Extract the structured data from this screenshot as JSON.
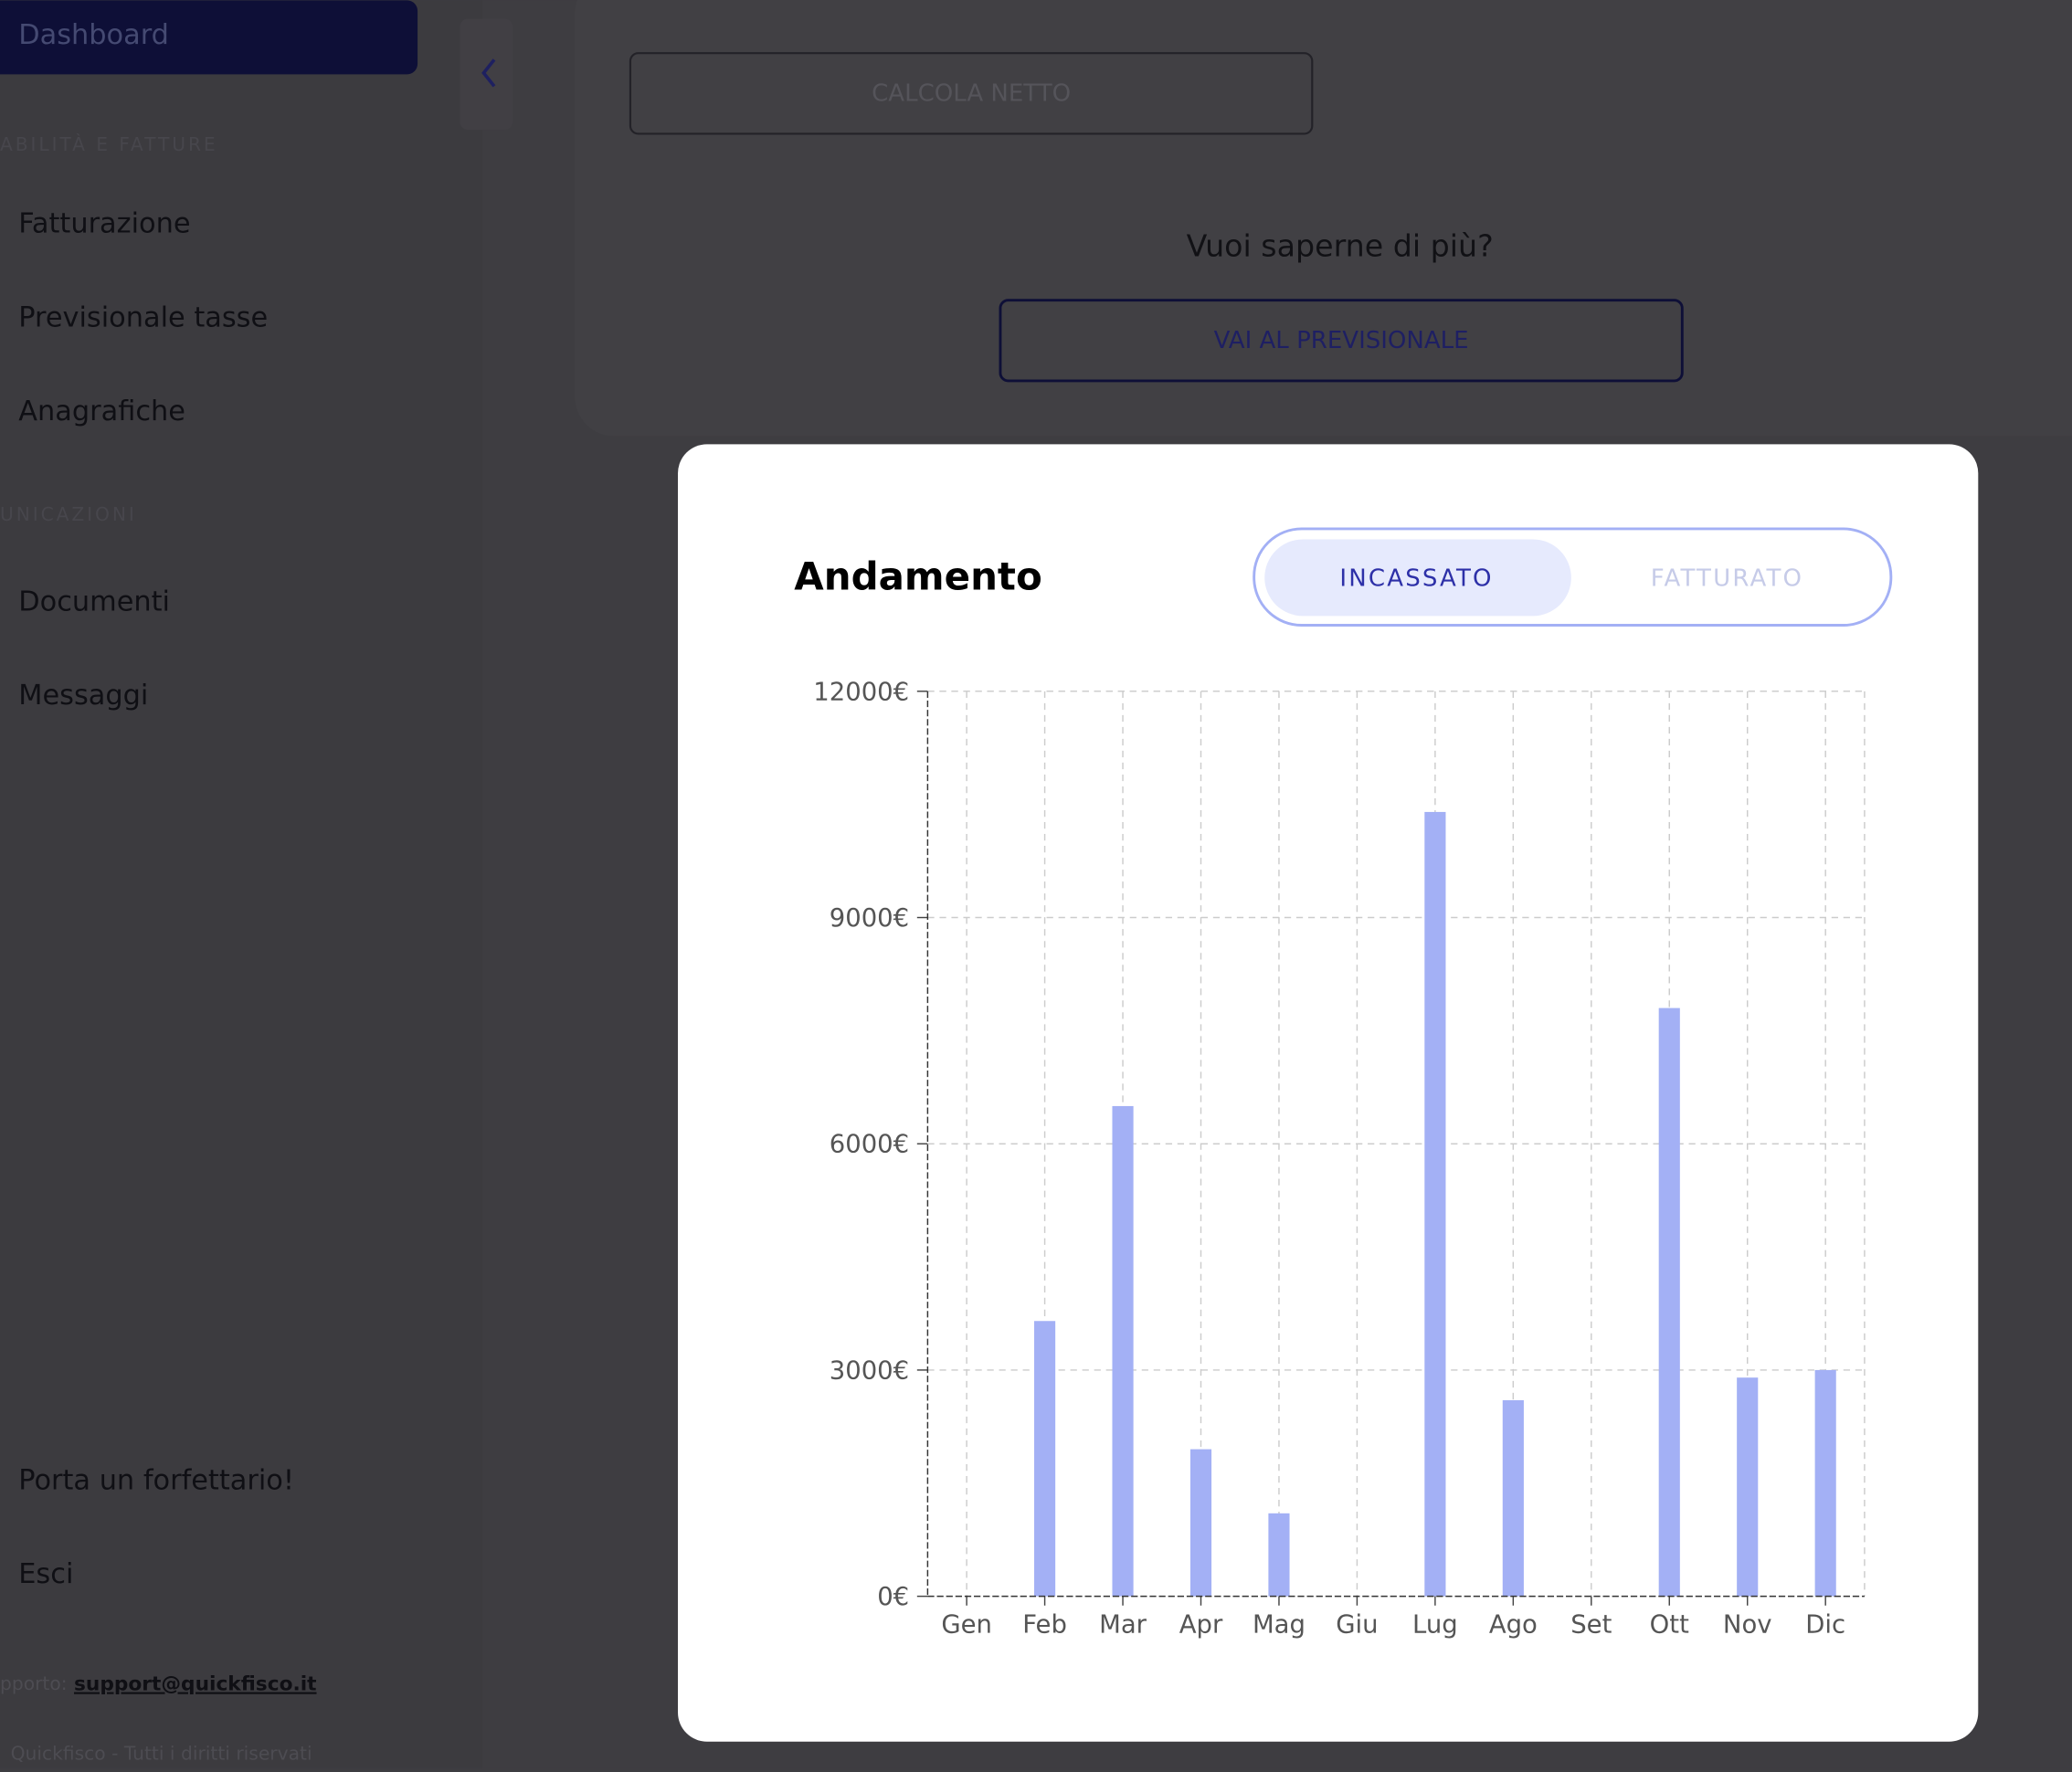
{
  "sidebar": {
    "active": "Dashboard",
    "section1": "ABILITÀ E FATTURE",
    "items1": [
      "Fatturazione",
      "Previsionale tasse",
      "Anagrafiche"
    ],
    "section2": "UNICAZIONI",
    "items2": [
      "Documenti",
      "Messaggi"
    ],
    "bottom": [
      "Porta un forfettario!",
      "Esci"
    ],
    "support_prefix": "pporto:",
    "support_email": "support@quickfisco.it",
    "footer": "Quickfisco - Tutti i diritti riservati"
  },
  "main": {
    "calc_button": "CALCOLA NETTO",
    "question": "Vuoi saperne di più?",
    "forecast_button": "VAI AL PREVISIONALE"
  },
  "modal": {
    "tabs": [
      "INCASSATO",
      "FATTURATO"
    ]
  },
  "chart_data": {
    "type": "bar",
    "title": "Andamento",
    "categories": [
      "Gen",
      "Feb",
      "Mar",
      "Apr",
      "Mag",
      "Giu",
      "Lug",
      "Ago",
      "Set",
      "Ott",
      "Nov",
      "Dic"
    ],
    "values": [
      0,
      3650,
      6500,
      1950,
      1100,
      0,
      10400,
      2600,
      0,
      7800,
      2900,
      3000
    ],
    "color": "#a3b0f5",
    "ylim": [
      0,
      12000
    ],
    "yticks": [
      {
        "value": 0,
        "label": "0€"
      },
      {
        "value": 3000,
        "label": "3000€"
      },
      {
        "value": 6000,
        "label": "6000€"
      },
      {
        "value": 9000,
        "label": "9000€"
      },
      {
        "value": 12000,
        "label": "12000€"
      }
    ],
    "grid": true
  }
}
